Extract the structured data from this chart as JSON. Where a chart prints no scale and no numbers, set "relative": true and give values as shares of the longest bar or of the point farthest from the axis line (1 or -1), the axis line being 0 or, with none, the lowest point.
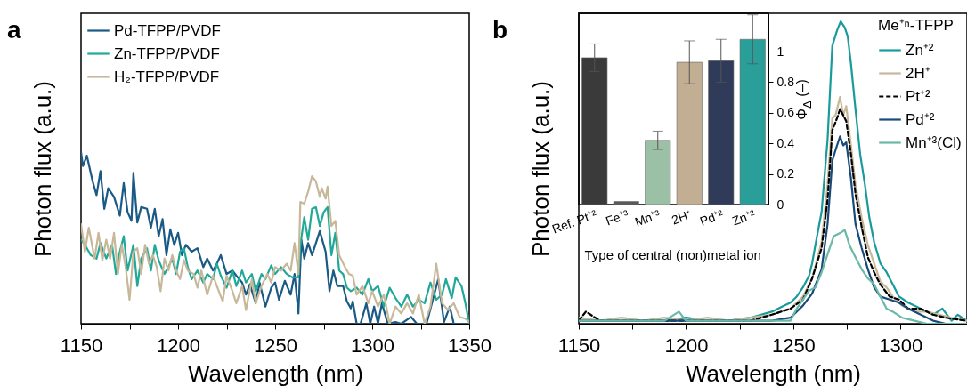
{
  "chart_data": [
    {
      "type": "line",
      "title": "a",
      "xlabel": "Wavelength (nm)",
      "ylabel": "Photon flux (a.u.)",
      "relative": true,
      "xlim": [
        1150,
        1350
      ],
      "xticks": [
        1150,
        {
          "value": 1175,
          "label": null
        },
        1200,
        {
          "value": 1225,
          "label": null
        },
        1250,
        {
          "value": 1275,
          "label": null
        },
        1300,
        {
          "value": 1325,
          "label": null
        },
        1350
      ],
      "legend": "top left",
      "series": [
        {
          "name": "Pd-TFPP/PVDF",
          "color": "#1a5a85",
          "x": [
            1150,
            1151,
            1153,
            1156,
            1158,
            1160,
            1162,
            1164,
            1167,
            1170,
            1172,
            1174,
            1176,
            1177,
            1179,
            1181,
            1184,
            1186,
            1188,
            1190,
            1192,
            1194,
            1196,
            1198,
            1200,
            1202,
            1204,
            1207,
            1210,
            1213,
            1215,
            1218,
            1220,
            1222,
            1225,
            1228,
            1230,
            1233,
            1235,
            1237,
            1240,
            1242,
            1245,
            1248,
            1250,
            1252,
            1255,
            1258,
            1260,
            1262,
            1263.5,
            1265,
            1267,
            1269,
            1271,
            1273,
            1276,
            1278,
            1280,
            1282,
            1285,
            1287,
            1289,
            1290,
            1292,
            1294,
            1297,
            1299,
            1301,
            1303,
            1305,
            1308,
            1312,
            1315,
            1320,
            1323,
            1328,
            1334,
            1337,
            1340,
            1342,
            1346,
            1350
          ],
          "values": [
            1.0,
            0.92,
            0.98,
            0.83,
            0.75,
            0.89,
            0.67,
            0.79,
            0.74,
            0.63,
            0.82,
            0.65,
            0.6,
            0.88,
            0.59,
            0.68,
            0.67,
            0.56,
            0.67,
            0.51,
            0.61,
            0.4,
            0.55,
            0.46,
            0.53,
            0.4,
            0.46,
            0.42,
            0.44,
            0.33,
            0.38,
            0.31,
            0.35,
            0.4,
            0.29,
            0.31,
            0.28,
            0.24,
            0.17,
            0.23,
            0.12,
            0.24,
            0.1,
            0.21,
            0.24,
            0.14,
            0.25,
            0.17,
            0.29,
            0.06,
            0.49,
            0.38,
            0.47,
            0.4,
            0.47,
            0.54,
            0.42,
            0.19,
            0.31,
            0.22,
            0.22,
            0.13,
            0.09,
            0.13,
            0,
            0,
            0.12,
            0,
            0.1,
            0,
            0.12,
            0,
            0.01,
            0,
            0.04,
            0,
            0,
            0.26,
            0.01,
            0.1,
            0,
            0,
            0
          ]
        },
        {
          "name": "Zn-TFPP/PVDF",
          "color": "#20a898",
          "x": [
            1150,
            1152,
            1155,
            1158,
            1160,
            1163,
            1166,
            1168,
            1170,
            1172,
            1174,
            1177,
            1179,
            1181,
            1184,
            1186,
            1188,
            1190,
            1193,
            1195,
            1197,
            1199,
            1201,
            1203,
            1205,
            1207,
            1210,
            1213,
            1215,
            1218,
            1220,
            1222,
            1225,
            1228,
            1230,
            1233,
            1235,
            1238,
            1240,
            1243,
            1245,
            1248,
            1250,
            1253,
            1256,
            1259,
            1262,
            1263,
            1265,
            1267,
            1269,
            1271,
            1273,
            1275,
            1277,
            1279,
            1281,
            1283,
            1285,
            1287,
            1289,
            1292,
            1295,
            1298,
            1300,
            1303,
            1306,
            1309,
            1312,
            1315,
            1318,
            1321,
            1324,
            1327,
            1330,
            1333,
            1336,
            1338,
            1341,
            1343,
            1346,
            1348,
            1350
          ],
          "values": [
            0.49,
            0.46,
            0.4,
            0.38,
            0.47,
            0.38,
            0.46,
            0.29,
            0.42,
            0.51,
            0.31,
            0.46,
            0.22,
            0.38,
            0.44,
            0.31,
            0.46,
            0.37,
            0.29,
            0.33,
            0.38,
            0.29,
            0.42,
            0.44,
            0.33,
            0.26,
            0.31,
            0.24,
            0.29,
            0.26,
            0.35,
            0.28,
            0.21,
            0.31,
            0.22,
            0.31,
            0.24,
            0.29,
            0.19,
            0.29,
            0.26,
            0.34,
            0.29,
            0.33,
            0.29,
            0.27,
            0.27,
            0.46,
            0.62,
            0.49,
            0.67,
            0.68,
            0.57,
            0.65,
            0.68,
            0.4,
            0.53,
            0.31,
            0.29,
            0.21,
            0.19,
            0.21,
            0.17,
            0.26,
            0.19,
            0.22,
            0.1,
            0.21,
            0.15,
            0.1,
            0.17,
            0.1,
            0.14,
            0.12,
            0.24,
            0.14,
            0.17,
            0.26,
            0.15,
            0.27,
            0.22,
            0.12,
            0
          ]
        },
        {
          "name": "H₂-TFPP/PVDF",
          "color": "#c8b89a",
          "x": [
            1150,
            1152,
            1154,
            1157,
            1159,
            1161,
            1163,
            1165,
            1167,
            1169,
            1171,
            1173,
            1175,
            1177,
            1179,
            1181,
            1183,
            1185,
            1187,
            1189,
            1191,
            1193,
            1195,
            1197,
            1199,
            1201,
            1203,
            1205,
            1208,
            1210,
            1212,
            1215,
            1218,
            1220,
            1223,
            1225,
            1228,
            1230,
            1233,
            1235,
            1238,
            1240,
            1243,
            1246,
            1248,
            1250,
            1253,
            1256,
            1258,
            1260,
            1262,
            1263,
            1265,
            1267,
            1269,
            1271,
            1273,
            1274,
            1276,
            1277,
            1279,
            1281,
            1283,
            1286,
            1288,
            1290,
            1292,
            1295,
            1298,
            1300,
            1303,
            1306,
            1309,
            1312,
            1315,
            1318,
            1321,
            1324,
            1327,
            1330,
            1333,
            1336,
            1339,
            1342,
            1345,
            1348,
            1350
          ],
          "values": [
            0.58,
            0.42,
            0.56,
            0.38,
            0.53,
            0.37,
            0.49,
            0.38,
            0.53,
            0.29,
            0.46,
            0.33,
            0.14,
            0.42,
            0.44,
            0.29,
            0.46,
            0.35,
            0.4,
            0.33,
            0.19,
            0.38,
            0.31,
            0.4,
            0.31,
            0.26,
            0.37,
            0.31,
            0.29,
            0.21,
            0.31,
            0.17,
            0.28,
            0.22,
            0.13,
            0.28,
            0.19,
            0.12,
            0.22,
            0.08,
            0.26,
            0.12,
            0.22,
            0.29,
            0.24,
            0.33,
            0.31,
            0.35,
            0.31,
            0.47,
            0.29,
            0.71,
            0.7,
            0.77,
            0.86,
            0.83,
            0.74,
            0.79,
            0.73,
            0.8,
            0.57,
            0.6,
            0.4,
            0.33,
            0.29,
            0.28,
            0.17,
            0.22,
            0.12,
            0.19,
            0.1,
            0.17,
            0,
            0.1,
            0.06,
            0.12,
            0.06,
            0.17,
            0,
            0.1,
            0.35,
            0.12,
            0.08,
            0.12,
            0.04,
            0.03,
            0.01
          ]
        }
      ]
    },
    {
      "type": "line",
      "title": "b",
      "xlabel": "Wavelength (nm)",
      "ylabel": "Photon flux (a.u.)",
      "relative": true,
      "xlim": [
        1150,
        1331
      ],
      "xticks": [
        1150,
        {
          "value": 1175,
          "label": null
        },
        1200,
        {
          "value": 1225,
          "label": null
        },
        1250,
        {
          "value": 1275,
          "label": null
        },
        1300,
        {
          "value": 1325,
          "label": null
        }
      ],
      "legend": "top right",
      "legend_title": "Me⁺ⁿ-TFPP",
      "series": [
        {
          "name": "Zn⁺²",
          "color": "#1a9a9a",
          "x": [
            1150,
            1160,
            1170,
            1180,
            1190,
            1200,
            1210,
            1220,
            1230,
            1240,
            1245.8,
            1248.7,
            1251.6,
            1254.5,
            1257.4,
            1258.8,
            1260.3,
            1263.2,
            1266,
            1268.2,
            1270.4,
            1272.1,
            1274,
            1275.4,
            1276.9,
            1279,
            1281.2,
            1283.4,
            1285.5,
            1287.7,
            1290.6,
            1293.5,
            1296.4,
            1299.3,
            1303.6,
            1309.4,
            1315.2,
            1319.5,
            1323.8,
            1326.7,
            1330.8
          ],
          "values": [
            0.01,
            0.01,
            0.01,
            0.01,
            0.01,
            0.02,
            0.01,
            0.01,
            0.02,
            0.04,
            0.06,
            0.07,
            0.09,
            0.12,
            0.16,
            0.2,
            0.26,
            0.37,
            0.61,
            0.92,
            0.97,
            1.0,
            0.98,
            0.95,
            0.86,
            0.71,
            0.56,
            0.46,
            0.35,
            0.27,
            0.2,
            0.17,
            0.13,
            0.09,
            0.07,
            0.05,
            0.03,
            0.05,
            0.01,
            0.03,
            0.01
          ]
        },
        {
          "name": "2H⁺",
          "color": "#c8b89a",
          "x": [
            1150,
            1160,
            1170,
            1180,
            1190,
            1200,
            1210,
            1220,
            1230,
            1240,
            1248.7,
            1254.5,
            1258.8,
            1263.2,
            1266,
            1268.2,
            1269.7,
            1271.8,
            1273.3,
            1274.7,
            1276.9,
            1279,
            1281.9,
            1284.8,
            1287.7,
            1290.6,
            1293.5,
            1296.4,
            1300.7,
            1306.5,
            1312.3,
            1318.1,
            1323.8,
            1330.8
          ],
          "values": [
            0.02,
            0.01,
            0.02,
            0.01,
            0.02,
            0.01,
            0.02,
            0.01,
            0.02,
            0.03,
            0.05,
            0.09,
            0.15,
            0.27,
            0.46,
            0.68,
            0.69,
            0.75,
            0.69,
            0.72,
            0.59,
            0.46,
            0.35,
            0.26,
            0.2,
            0.14,
            0.12,
            0.09,
            0.06,
            0.04,
            0.04,
            0.03,
            0.02,
            0.01
          ]
        },
        {
          "name": "Pt⁺²",
          "color": "#000000",
          "line_style": "dashed",
          "x": [
            1150,
            1153.3,
            1160,
            1170,
            1180,
            1190,
            1200,
            1210,
            1220,
            1230,
            1240,
            1248.7,
            1254.5,
            1258.8,
            1263.2,
            1266,
            1268.2,
            1270.4,
            1271.8,
            1273.3,
            1274.7,
            1276.9,
            1279,
            1281.9,
            1284.8,
            1287.7,
            1290.6,
            1294.9,
            1299.3,
            1303.6,
            1309.4,
            1315.2,
            1321,
            1330.8
          ],
          "values": [
            0.01,
            0.04,
            0.01,
            0.01,
            0.01,
            0.01,
            0.01,
            0.01,
            0.01,
            0.01,
            0.03,
            0.05,
            0.08,
            0.15,
            0.25,
            0.41,
            0.64,
            0.68,
            0.71,
            0.69,
            0.67,
            0.56,
            0.43,
            0.32,
            0.22,
            0.17,
            0.13,
            0.09,
            0.08,
            0.05,
            0.05,
            0.03,
            0.02,
            0.01
          ]
        },
        {
          "name": "Pd⁺²",
          "color": "#1a4a7a",
          "x": [
            1150,
            1160,
            1170,
            1180,
            1190,
            1200,
            1210,
            1220,
            1230,
            1240,
            1248.7,
            1254.5,
            1258.8,
            1263.2,
            1266,
            1268.2,
            1270.4,
            1271.8,
            1273.3,
            1274.7,
            1276.9,
            1279,
            1281.9,
            1284.8,
            1287.7,
            1290.6,
            1294.9,
            1299.3,
            1303.6,
            1309.4,
            1315.2,
            1321,
            1330.8
          ],
          "values": [
            0.01,
            0.01,
            0.01,
            0.01,
            0.01,
            0.01,
            0.01,
            0.01,
            0.01,
            0.01,
            0.02,
            0.06,
            0.1,
            0.18,
            0.33,
            0.54,
            0.59,
            0.62,
            0.59,
            0.6,
            0.48,
            0.33,
            0.25,
            0.18,
            0.12,
            0.09,
            0.08,
            0.07,
            0.05,
            0.03,
            0.01,
            0,
            0
          ]
        },
        {
          "name": "Mn⁺³(Cl)",
          "color": "#6ab8a8",
          "x": [
            1150,
            1160,
            1170,
            1180,
            1190,
            1196.7,
            1200,
            1210,
            1220,
            1230,
            1240,
            1248.7,
            1251.6,
            1257.4,
            1260.3,
            1263.2,
            1266,
            1268.9,
            1271.8,
            1274,
            1276.2,
            1279,
            1281.9,
            1284.8,
            1287.7,
            1290.6,
            1293.5,
            1296.4,
            1300.7,
            1306.5,
            1312.3,
            1330.8
          ],
          "values": [
            0.01,
            0.01,
            0.01,
            0.01,
            0.01,
            0.04,
            0.01,
            0.01,
            0.01,
            0.01,
            0.01,
            0.01,
            0.05,
            0.11,
            0.12,
            0.17,
            0.23,
            0.29,
            0.3,
            0.31,
            0.26,
            0.22,
            0.18,
            0.15,
            0.13,
            0.09,
            0.05,
            0.04,
            0.02,
            0.01,
            0,
            0
          ]
        }
      ]
    },
    {
      "type": "bar",
      "xlabel": "Type of central (non)metal ion",
      "ylabel": "Φ$_{Δ}$ (–)",
      "categories": [
        "Ref. Pt⁺²",
        "Fe⁺³",
        "Mn⁺³",
        "2H⁺",
        "Pd⁺²",
        "Zn⁺²"
      ],
      "values": [
        0.96,
        0.02,
        0.42,
        0.93,
        0.94,
        1.08
      ],
      "colors": [
        "#3a3a3a",
        "#5a5a5a",
        "#9cc0a6",
        "#c2ae92",
        "#2f3b58",
        "#2a9e98"
      ],
      "errors": [
        [
          0.87,
          1.05
        ],
        null,
        [
          0.36,
          0.48
        ],
        [
          0.79,
          1.07
        ],
        [
          0.8,
          1.08
        ],
        [
          0.92,
          1.24
        ]
      ],
      "ylim": [
        0,
        1.25
      ],
      "yticks": [
        0,
        0.2,
        0.4,
        0.6,
        0.8,
        1
      ]
    }
  ]
}
